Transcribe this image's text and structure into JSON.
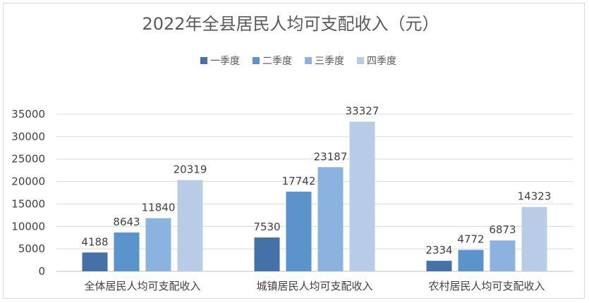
{
  "chart_data": {
    "type": "bar",
    "title": "2022年全县居民人均可支配收入（元）",
    "categories": [
      "全体居民人均可支配收入",
      "城镇居民人均可支配收入",
      "农村居民人均可支配收入"
    ],
    "series": [
      {
        "name": "一季度",
        "color": "#4472a8",
        "values": [
          4188,
          7530,
          2334
        ]
      },
      {
        "name": "二季度",
        "color": "#5b93cb",
        "values": [
          8643,
          17742,
          4772
        ]
      },
      {
        "name": "三季度",
        "color": "#8cb2e0",
        "values": [
          11840,
          23187,
          6873
        ]
      },
      {
        "name": "四季度",
        "color": "#b8cce8",
        "values": [
          20319,
          33327,
          14323
        ]
      }
    ],
    "ylim": [
      0,
      35000
    ],
    "yticks": [
      0,
      5000,
      10000,
      15000,
      20000,
      25000,
      30000,
      35000
    ],
    "grid": true,
    "legend_position": "top"
  }
}
